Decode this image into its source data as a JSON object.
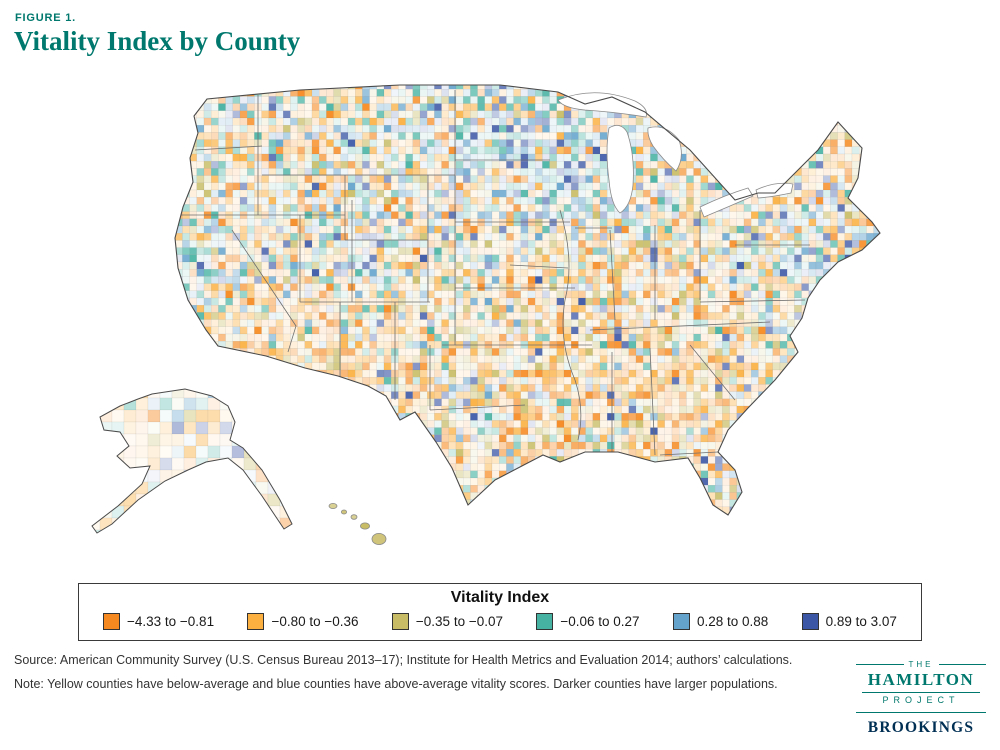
{
  "figure": {
    "label": "FIGURE 1.",
    "title": "Vitality Index by County"
  },
  "legend": {
    "title": "Vitality Index",
    "items": [
      {
        "label": "−4.33 to −0.81",
        "color": "#F6891F"
      },
      {
        "label": "−0.80 to −0.36",
        "color": "#FBB040"
      },
      {
        "label": "−0.35 to −0.07",
        "color": "#C8BD66"
      },
      {
        "label": "−0.06 to 0.27",
        "color": "#45B2A2"
      },
      {
        "label": "0.28 to 0.88",
        "color": "#63A3CC"
      },
      {
        "label": "0.89 to 3.07",
        "color": "#3A56A5"
      }
    ]
  },
  "chart_data": {
    "type": "choropleth_map",
    "title": "Vitality Index by County",
    "region": "United States (counties, incl. Alaska and Hawaii)",
    "legend_title": "Vitality Index",
    "bins": [
      {
        "range": [
          -4.33,
          -0.81
        ],
        "color": "#F6891F"
      },
      {
        "range": [
          -0.8,
          -0.36
        ],
        "color": "#FBB040"
      },
      {
        "range": [
          -0.35,
          -0.07
        ],
        "color": "#C8BD66"
      },
      {
        "range": [
          -0.06,
          0.27
        ],
        "color": "#45B2A2"
      },
      {
        "range": [
          0.28,
          0.88
        ],
        "color": "#63A3CC"
      },
      {
        "range": [
          0.89,
          3.07
        ],
        "color": "#3A56A5"
      }
    ],
    "encoding_note": "Yellow/orange = below-average vitality; blue = above-average; darker = larger population"
  },
  "footer": {
    "source": "Source: American Community Survey (U.S. Census Bureau 2013–17); Institute for Health Metrics and Evaluation 2014; authors’ calculations.",
    "note": "Note: Yellow counties have below-average and blue counties have above-average vitality scores. Darker counties have larger populations."
  },
  "logo": {
    "the": "THE",
    "hamilton": "HAMILTON",
    "project": "PROJECT",
    "brookings": "BROOKINGS"
  },
  "colors": {
    "accent_teal": "#00786d",
    "brookings_navy": "#002f54",
    "outline_grey": "#4a4a4a"
  }
}
